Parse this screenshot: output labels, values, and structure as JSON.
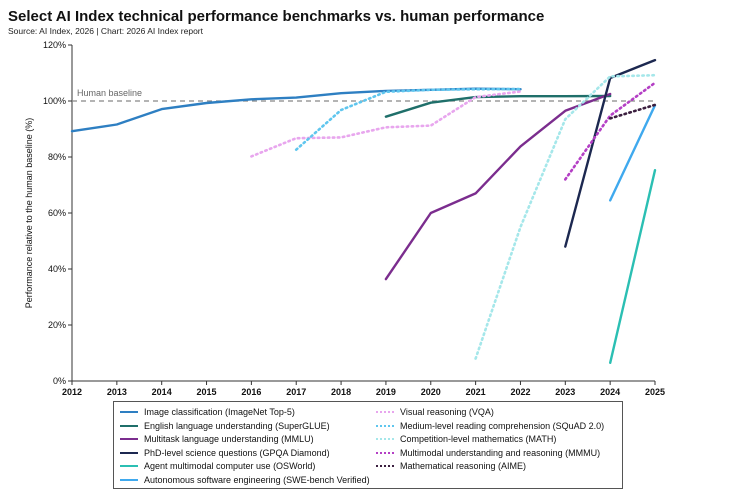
{
  "title": "Select AI Index technical performance benchmarks vs. human performance",
  "subtitle": "Source: AI Index, 2026 | Chart: 2026 AI Index report",
  "chart_data": {
    "type": "line",
    "ylabel": "Performance relative to the human baseline (%)",
    "xlabel": "",
    "xlim": [
      2012,
      2025
    ],
    "ylim": [
      0,
      120
    ],
    "x_ticks": [
      "2012",
      "2013",
      "2014",
      "2015",
      "2016",
      "2017",
      "2018",
      "2019",
      "2020",
      "2021",
      "2022",
      "2023",
      "2024",
      "2025"
    ],
    "y_ticks": [
      "0%",
      "20%",
      "40%",
      "60%",
      "80%",
      "100%",
      "120%"
    ],
    "baseline": {
      "label": "Human baseline",
      "value": 100
    },
    "series": [
      {
        "name": "Image classification (ImageNet Top-5)",
        "color": "#2e7fc2",
        "dash": "solid",
        "points": [
          [
            2012,
            89.2
          ],
          [
            2013,
            91.6
          ],
          [
            2014,
            97.1
          ],
          [
            2015,
            99.3
          ],
          [
            2016,
            100.6
          ],
          [
            2017,
            101.2
          ],
          [
            2018,
            102.8
          ],
          [
            2019,
            103.6
          ],
          [
            2020,
            104.0
          ],
          [
            2021,
            104.4
          ],
          [
            2022,
            104.2
          ]
        ]
      },
      {
        "name": "English language understanding (SuperGLUE)",
        "color": "#1f6f6a",
        "dash": "solid",
        "points": [
          [
            2019,
            94.4
          ],
          [
            2020,
            99.4
          ],
          [
            2021,
            101.4
          ],
          [
            2022,
            101.7
          ],
          [
            2023,
            101.7
          ],
          [
            2024,
            101.8
          ]
        ]
      },
      {
        "name": "Multitask language understanding (MMLU)",
        "color": "#7b2d8e",
        "dash": "solid",
        "points": [
          [
            2019,
            36.4
          ],
          [
            2020,
            60.0
          ],
          [
            2021,
            67.0
          ],
          [
            2022,
            83.8
          ],
          [
            2023,
            96.5
          ],
          [
            2024,
            102.5
          ]
        ]
      },
      {
        "name": "PhD-level science questions (GPQA Diamond)",
        "color": "#1c2850",
        "dash": "solid",
        "points": [
          [
            2023,
            48.0
          ],
          [
            2024,
            108.2
          ],
          [
            2025,
            114.6
          ]
        ]
      },
      {
        "name": "Agent multimodal computer use (OSWorld)",
        "color": "#2bbfb3",
        "dash": "solid",
        "points": [
          [
            2024,
            6.5
          ],
          [
            2025,
            75.3
          ]
        ]
      },
      {
        "name": "Autonomous software engineering (SWE-bench Verified)",
        "color": "#3fa9ee",
        "dash": "solid",
        "points": [
          [
            2024,
            64.5
          ],
          [
            2025,
            98.5
          ]
        ]
      },
      {
        "name": "Visual reasoning (VQA)",
        "color": "#e8a6ee",
        "dash": "dot",
        "points": [
          [
            2016,
            80.2
          ],
          [
            2017,
            86.7
          ],
          [
            2018,
            87.0
          ],
          [
            2019,
            90.6
          ],
          [
            2020,
            91.2
          ],
          [
            2021,
            101.4
          ],
          [
            2022,
            103.4
          ]
        ]
      },
      {
        "name": "Medium-level reading comprehension (SQuAD 2.0)",
        "color": "#5fc6ee",
        "dash": "dot",
        "points": [
          [
            2017,
            82.6
          ],
          [
            2018,
            96.8
          ],
          [
            2019,
            103.3
          ],
          [
            2020,
            104.0
          ],
          [
            2021,
            104.2
          ],
          [
            2022,
            104.3
          ]
        ]
      },
      {
        "name": "Competition-level mathematics (MATH)",
        "color": "#a5e7ea",
        "dash": "dot",
        "points": [
          [
            2021,
            8.0
          ],
          [
            2022,
            55.0
          ],
          [
            2023,
            93.5
          ],
          [
            2024,
            108.8
          ],
          [
            2025,
            109.2
          ]
        ]
      },
      {
        "name": "Multimodal understanding and reasoning (MMMU)",
        "color": "#b43fc5",
        "dash": "dot",
        "points": [
          [
            2023,
            72.0
          ],
          [
            2024,
            94.8
          ],
          [
            2025,
            106.5
          ]
        ]
      },
      {
        "name": "Mathematical reasoning (AIME)",
        "color": "#3b1f3f",
        "dash": "dot",
        "points": [
          [
            2024,
            93.8
          ],
          [
            2025,
            98.6
          ]
        ]
      }
    ],
    "legend": "bottom"
  }
}
